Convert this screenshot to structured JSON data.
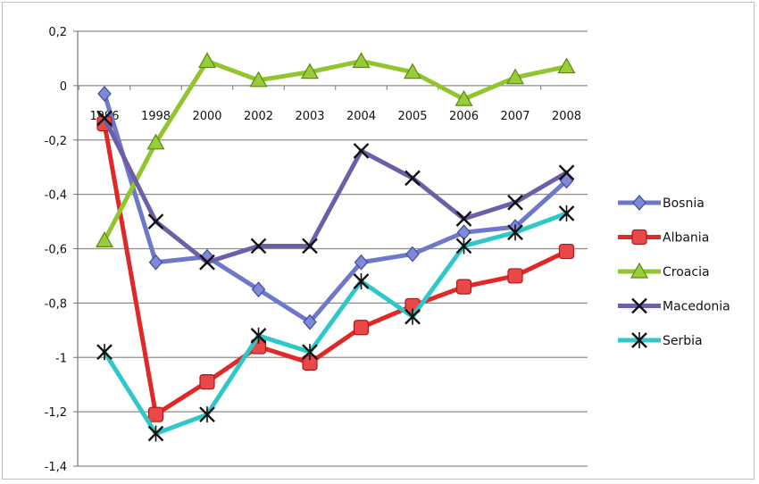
{
  "chart_data": {
    "type": "line",
    "title": "",
    "xlabel": "",
    "ylabel": "",
    "categories": [
      "1996",
      "1998",
      "2000",
      "2002",
      "2003",
      "2004",
      "2005",
      "2006",
      "2007",
      "2008"
    ],
    "ylim": [
      -1.4,
      0.2
    ],
    "yticks": [
      0.2,
      0,
      -0.2,
      -0.4,
      -0.6,
      -0.8,
      -1,
      -1.2,
      -1.4
    ],
    "ytick_labels": [
      "0,2",
      "0",
      "-0,2",
      "-0,4",
      "-0,6",
      "-0,8",
      "-1",
      "-1,2",
      "-1,4"
    ],
    "grid": true,
    "legend": "right",
    "series": [
      {
        "name": "Bosnia",
        "color": "#6d78c8",
        "marker": "diamond",
        "values": [
          -0.03,
          -0.65,
          -0.63,
          -0.75,
          -0.87,
          -0.65,
          -0.62,
          -0.54,
          -0.52,
          -0.35
        ]
      },
      {
        "name": "Albania",
        "color": "#e02828",
        "marker": "square",
        "values": [
          -0.14,
          -1.21,
          -1.09,
          -0.96,
          -1.02,
          -0.89,
          -0.81,
          -0.74,
          -0.7,
          -0.61
        ]
      },
      {
        "name": "Croacia",
        "color": "#92c42e",
        "marker": "triangle",
        "values": [
          -0.57,
          -0.21,
          0.09,
          0.02,
          0.05,
          0.09,
          0.05,
          -0.05,
          0.03,
          0.07
        ]
      },
      {
        "name": "Macedonia",
        "color": "#6e5ea8",
        "marker": "xstar",
        "values": [
          -0.12,
          -0.5,
          -0.65,
          -0.59,
          -0.59,
          -0.24,
          -0.34,
          -0.49,
          -0.43,
          -0.32
        ]
      },
      {
        "name": "Serbia",
        "color": "#2ec8c8",
        "marker": "asterisk",
        "values": [
          -0.98,
          -1.28,
          -1.21,
          -0.92,
          -0.98,
          -0.72,
          -0.85,
          -0.59,
          -0.54,
          -0.47
        ]
      }
    ]
  }
}
